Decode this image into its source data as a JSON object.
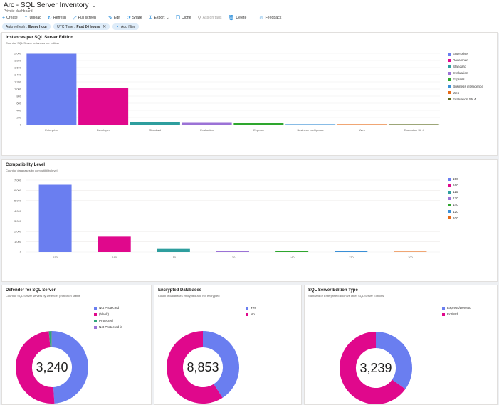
{
  "header": {
    "title": "Arc - SQL Server Inventory",
    "subtitle": "Private dashboard"
  },
  "toolbar": {
    "create": "Create",
    "upload": "Upload",
    "refresh": "Refresh",
    "fullscreen": "Full screen",
    "edit": "Edit",
    "share": "Share",
    "export": "Export",
    "clone": "Clone",
    "assign_tags": "Assign tags",
    "delete": "Delete",
    "feedback": "Feedback"
  },
  "filters": {
    "auto_refresh_label": "Auto refresh :",
    "auto_refresh_value": "Every hour",
    "utc_label": "UTC Time :",
    "utc_value": "Past 24 hours",
    "add_filter": "Add filter"
  },
  "tiles": {
    "editions": {
      "title": "Instances per SQL Server Edition",
      "subtitle": "Count of SQL Server instances per edition"
    },
    "compat": {
      "title": "Compatibility Level",
      "subtitle": "Count of databases by compatibility level"
    },
    "defender": {
      "title": "Defender for SQL Server",
      "subtitle": "Count of SQL Server servers by Defender protection status",
      "total": "3,240"
    },
    "encrypted": {
      "title": "Encrypted Databases",
      "subtitle": "Count of databases encrypted and not encrypted",
      "total": "8,853"
    },
    "edition_type": {
      "title": "SQL Server Edition Type",
      "subtitle": "Standard or Enterprise Edition vs other SQL Server Editions",
      "total": "3,239"
    }
  },
  "chart_data": [
    {
      "type": "bar",
      "title": "Instances per SQL Server Edition",
      "categories": [
        "Enterprise",
        "Developer",
        "Standard",
        "Evaluation",
        "Express",
        "Business intelligence",
        "Web",
        "Evaluation Str 4"
      ],
      "values": [
        1990,
        1030,
        70,
        50,
        40,
        5,
        3,
        2
      ],
      "colors": [
        "#6a7ef0",
        "#e0088c",
        "#2e9e9e",
        "#9b72d6",
        "#2ea62e",
        "#3a8fd6",
        "#e66a18",
        "#5c6b1e"
      ],
      "ylim": [
        0,
        2000
      ],
      "yticks": [
        "0",
        "200",
        "400",
        "600",
        "800",
        "1,000",
        "1,200",
        "1,400",
        "1,600",
        "1,800",
        "2,000"
      ],
      "legend": "right"
    },
    {
      "type": "bar",
      "title": "Compatibility Level",
      "categories": [
        "150",
        "160",
        "110",
        "130",
        "140",
        "120",
        "100"
      ],
      "values": [
        6550,
        1500,
        300,
        130,
        110,
        80,
        20
      ],
      "colors": [
        "#6a7ef0",
        "#e0088c",
        "#2e9e9e",
        "#9b72d6",
        "#2ea62e",
        "#3a8fd6",
        "#e66a18"
      ],
      "ylim": [
        0,
        7000
      ],
      "yticks": [
        "0",
        "1,000",
        "2,000",
        "3,000",
        "4,000",
        "5,000",
        "6,000",
        "7,000"
      ],
      "legend": "right"
    },
    {
      "type": "pie",
      "title": "Defender for SQL Server",
      "labels": [
        "Not Protected",
        "(blank)",
        "Protected",
        "Not Protected-is"
      ],
      "values": [
        1585,
        1610,
        40,
        5
      ],
      "colors": [
        "#6a7ef0",
        "#e0088c",
        "#2ea67a",
        "#9b72d6"
      ],
      "total": "3,240"
    },
    {
      "type": "pie",
      "title": "Encrypted Databases",
      "labels": [
        "Yes",
        "No"
      ],
      "values": [
        3620,
        5233
      ],
      "colors": [
        "#6a7ef0",
        "#e0088c"
      ],
      "total": "8,853"
    },
    {
      "type": "pie",
      "title": "SQL Server Edition Type",
      "labels": [
        "Express/Dev etc",
        "Ent/Std"
      ],
      "values": [
        1130,
        2109
      ],
      "colors": [
        "#6a7ef0",
        "#e0088c"
      ],
      "total": "3,239"
    }
  ]
}
